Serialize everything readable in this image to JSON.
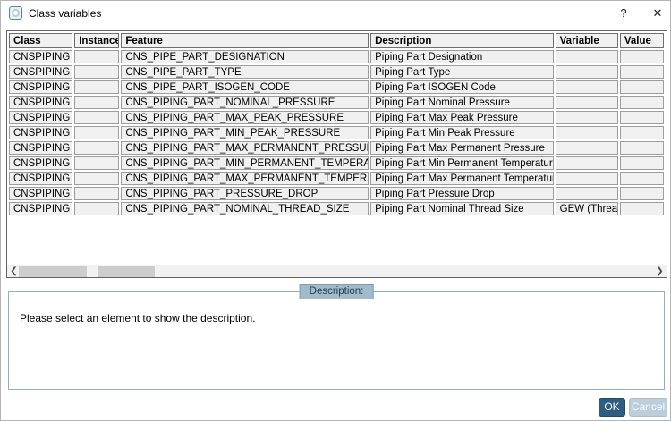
{
  "dialog": {
    "title": "Class variables",
    "help_label": "?",
    "close_label": "✕"
  },
  "table": {
    "columns": [
      "Class",
      "Instance",
      "Feature",
      "Description",
      "Variable",
      "Value"
    ],
    "rows": [
      [
        "CNSPIPING",
        "",
        "CNS_PIPE_PART_DESIGNATION",
        "Piping Part Designation",
        "",
        ""
      ],
      [
        "CNSPIPING",
        "",
        "CNS_PIPE_PART_TYPE",
        "Piping Part Type",
        "",
        ""
      ],
      [
        "CNSPIPING",
        "",
        "CNS_PIPE_PART_ISOGEN_CODE",
        "Piping Part ISOGEN Code",
        "",
        ""
      ],
      [
        "CNSPIPING",
        "",
        "CNS_PIPING_PART_NOMINAL_PRESSURE",
        "Piping Part Nominal Pressure",
        "",
        ""
      ],
      [
        "CNSPIPING",
        "",
        "CNS_PIPING_PART_MAX_PEAK_PRESSURE",
        "Piping Part Max Peak Pressure",
        "",
        ""
      ],
      [
        "CNSPIPING",
        "",
        "CNS_PIPING_PART_MIN_PEAK_PRESSURE",
        "Piping Part Min Peak Pressure",
        "",
        ""
      ],
      [
        "CNSPIPING",
        "",
        "CNS_PIPING_PART_MAX_PERMANENT_PRESSURE",
        "Piping Part Max Permanent Pressure",
        "",
        ""
      ],
      [
        "CNSPIPING",
        "",
        "CNS_PIPING_PART_MIN_PERMANENT_TEMPERATURE",
        "Piping Part Min Permanent Temperature",
        "",
        ""
      ],
      [
        "CNSPIPING",
        "",
        "CNS_PIPING_PART_MAX_PERMANENT_TEMPERATURE",
        "Piping Part Max Permanent Temperature",
        "",
        ""
      ],
      [
        "CNSPIPING",
        "",
        "CNS_PIPING_PART_PRESSURE_DROP",
        "Piping Part Pressure Drop",
        "",
        ""
      ],
      [
        "CNSPIPING",
        "",
        "CNS_PIPING_PART_NOMINAL_THREAD_SIZE",
        "Piping Part Nominal Thread Size",
        "GEW (Thread)",
        ""
      ]
    ]
  },
  "scrollbar": {
    "left_arrow": "❮",
    "right_arrow": "❯"
  },
  "description_box": {
    "label": "Description:",
    "placeholder": "Please select an element to show the description."
  },
  "buttons": {
    "ok": "OK",
    "cancel": "Cancel"
  },
  "colors": {
    "ok_button": "#2d5e80",
    "cancel_button": "#bccede",
    "groupbox_border": "#8fafc3",
    "groupbox_label_bg": "#a2bbca",
    "cell_bg": "#f0f0f0",
    "cell_border": "#9d9d9d"
  }
}
